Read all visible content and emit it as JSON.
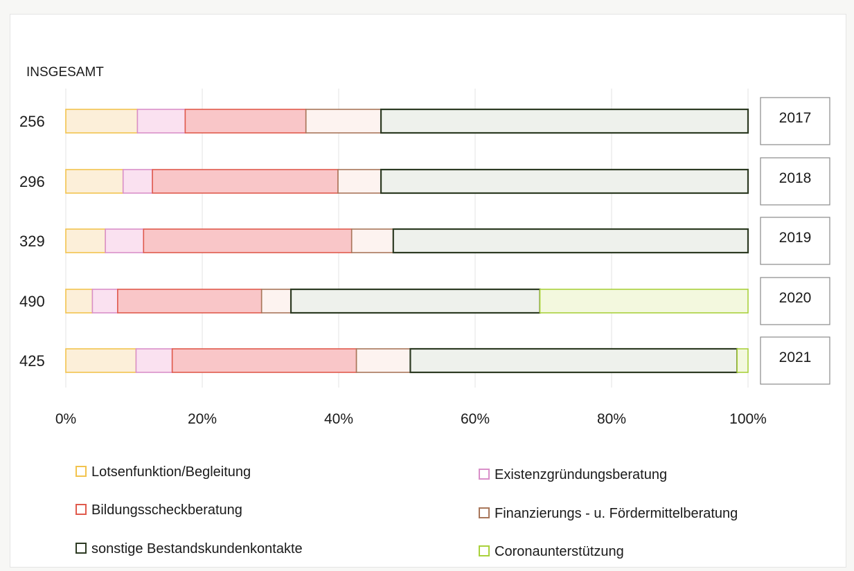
{
  "chart_data": {
    "type": "bar",
    "orientation": "horizontal",
    "stacked": "100%",
    "row_header": "INSGESAMT",
    "categories": [
      "2017",
      "2018",
      "2019",
      "2020",
      "2021"
    ],
    "totals": [
      "256",
      "296",
      "329",
      "490",
      "425"
    ],
    "x_ticks": [
      "0%",
      "20%",
      "40%",
      "60%",
      "80%",
      "100%"
    ],
    "xlim": [
      0,
      100
    ],
    "grid": "vertical",
    "legend_position": "bottom",
    "series": [
      {
        "name": "Lotsenfunktion/Begleitung",
        "color": "#f2c34e",
        "fill": "#fcefd9",
        "values": [
          10.5,
          8.4,
          5.8,
          3.9,
          10.3
        ]
      },
      {
        "name": "Existenzgründungsberatung",
        "color": "#d98fc9",
        "fill": "#fae1f0",
        "values": [
          7.0,
          4.3,
          5.6,
          3.7,
          5.3
        ]
      },
      {
        "name": "Bildungsscheckberatung",
        "color": "#e05a4c",
        "fill": "#f9c6c8",
        "values": [
          17.7,
          27.2,
          30.5,
          21.1,
          27.0
        ]
      },
      {
        "name": "Finanzierungs - u. Fördermittelberatung",
        "color": "#a8765a",
        "fill": "#fdf3f0",
        "values": [
          11.0,
          6.3,
          6.1,
          4.3,
          7.9
        ]
      },
      {
        "name": "sonstige Bestandskundenkontakte",
        "color": "#2c3a22",
        "fill": "#eef1ec",
        "values": [
          53.8,
          53.8,
          52.0,
          36.5,
          47.9
        ]
      },
      {
        "name": "Coronaunterstützung",
        "color": "#a9d13b",
        "fill": "#f3f8de",
        "values": [
          0,
          0,
          0,
          30.5,
          1.6
        ]
      }
    ]
  }
}
